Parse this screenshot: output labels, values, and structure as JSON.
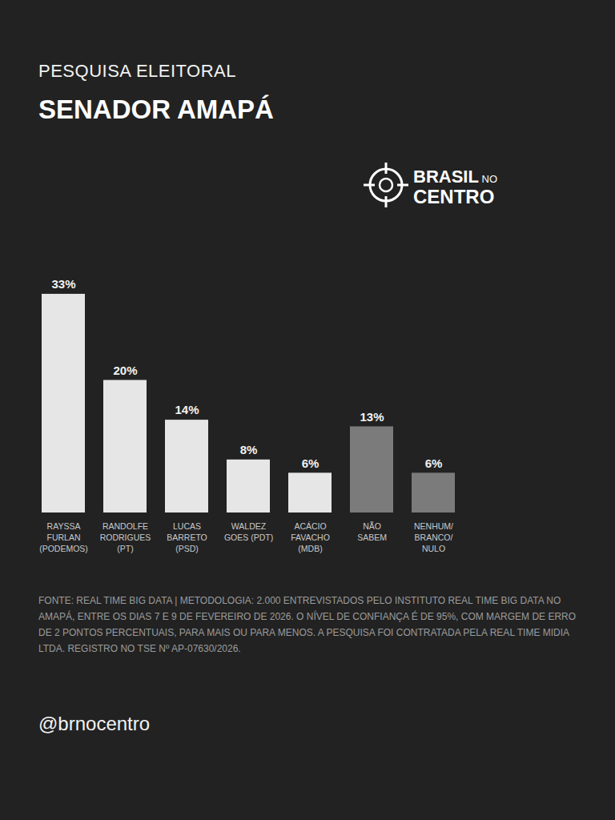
{
  "chart_data": {
    "type": "bar",
    "subtitle": "PESQUISA ELEITORAL",
    "title": "SENADOR AMAPÁ",
    "brand": "BRASIL NO CENTRO",
    "categories": [
      "RAYSSA FURLAN (PODEMOS)",
      "RANDOLFE RODRIGUES (PT)",
      "LUCAS BARRETO (PSD)",
      "WALDEZ GOES (PDT)",
      "ACÁCIO FAVACHO (MDB)",
      "NÃO SABEM",
      "NENHUM/BRANCO/NULO"
    ],
    "values": [
      33,
      20,
      14,
      8,
      6,
      13,
      6
    ],
    "value_labels": [
      "33%",
      "20%",
      "14%",
      "8%",
      "6%",
      "13%",
      "6%"
    ],
    "colors": [
      "#e6e6e6",
      "#e6e6e6",
      "#e6e6e6",
      "#e6e6e6",
      "#e6e6e6",
      "#7b7b7b",
      "#7b7b7b"
    ],
    "ylim": [
      0,
      40
    ],
    "data_labels": true,
    "tick_labels": "x",
    "grid": false,
    "source": "FONTE: REAL TIME BIG DATA | METODOLOGIA: 2.000 ENTREVISTADOS PELO INSTITUTO REAL TIME BIG DATA NO AMAPÁ, ENTRE OS DIAS 7 E 9 DE FEVEREIRO DE 2026. O NÍVEL DE CONFIANÇA É DE 95%, COM MARGEM DE ERRO DE 2 PONTOS PERCENTUAIS, PARA MAIS OU PARA MENOS. A PESQUISA FOI CONTRATADA PELA REAL TIME MIDIA LTDA. REGISTRO NO TSE Nº AP-07630/2026.",
    "handle": "@brnocentro"
  }
}
